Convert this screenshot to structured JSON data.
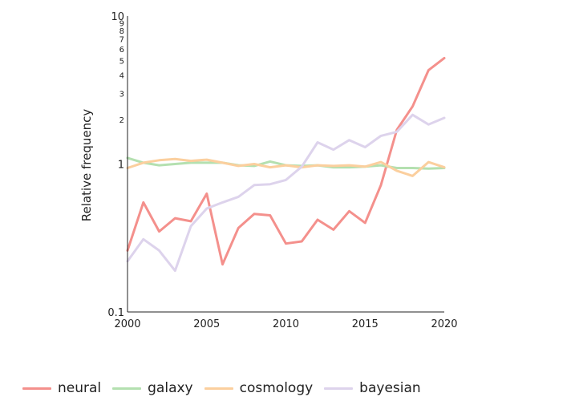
{
  "chart_data": {
    "type": "line",
    "ylabel": "Relative frequency",
    "xlabel": "",
    "yscale": "log",
    "xlim": [
      2000,
      2020
    ],
    "ylim": [
      0.1,
      10
    ],
    "x_ticks": [
      2000,
      2005,
      2010,
      2015,
      2020
    ],
    "y_major_ticks": [
      {
        "value": 0.1,
        "label": "0.1"
      },
      {
        "value": 1,
        "label": "1"
      },
      {
        "value": 10,
        "label": "10"
      }
    ],
    "y_minor_ticks": [
      2,
      3,
      4,
      5,
      6,
      7,
      8,
      9,
      20,
      30,
      40,
      50,
      60,
      70,
      80,
      90
    ],
    "grid": false,
    "legend_position": "bottom",
    "x": [
      2000,
      2001,
      2002,
      2003,
      2004,
      2005,
      2006,
      2007,
      2008,
      2009,
      2010,
      2011,
      2012,
      2013,
      2014,
      2015,
      2016,
      2017,
      2018,
      2019,
      2020
    ],
    "series": [
      {
        "name": "neural",
        "color": "#f4908c",
        "values": [
          0.26,
          0.55,
          0.35,
          0.43,
          0.41,
          0.63,
          0.21,
          0.37,
          0.46,
          0.45,
          0.29,
          0.3,
          0.42,
          0.36,
          0.48,
          0.4,
          0.72,
          1.7,
          2.45,
          4.3,
          5.2
        ]
      },
      {
        "name": "galaxy",
        "color": "#b4e0b0",
        "values": [
          1.1,
          1.02,
          0.98,
          1.0,
          1.02,
          1.02,
          1.02,
          0.98,
          0.97,
          1.04,
          0.98,
          0.97,
          0.98,
          0.95,
          0.95,
          0.96,
          0.98,
          0.94,
          0.94,
          0.93,
          0.94
        ]
      },
      {
        "name": "cosmology",
        "color": "#fbcf9e",
        "values": [
          0.94,
          1.02,
          1.06,
          1.08,
          1.05,
          1.07,
          1.02,
          0.97,
          1.0,
          0.95,
          0.98,
          0.95,
          0.98,
          0.97,
          0.98,
          0.96,
          1.03,
          0.9,
          0.83,
          1.03,
          0.95
        ]
      },
      {
        "name": "bayesian",
        "color": "#ddd3ec",
        "values": [
          0.22,
          0.31,
          0.26,
          0.19,
          0.38,
          0.5,
          0.55,
          0.6,
          0.72,
          0.73,
          0.78,
          0.96,
          1.4,
          1.25,
          1.45,
          1.3,
          1.55,
          1.65,
          2.15,
          1.85,
          2.05
        ]
      }
    ]
  }
}
